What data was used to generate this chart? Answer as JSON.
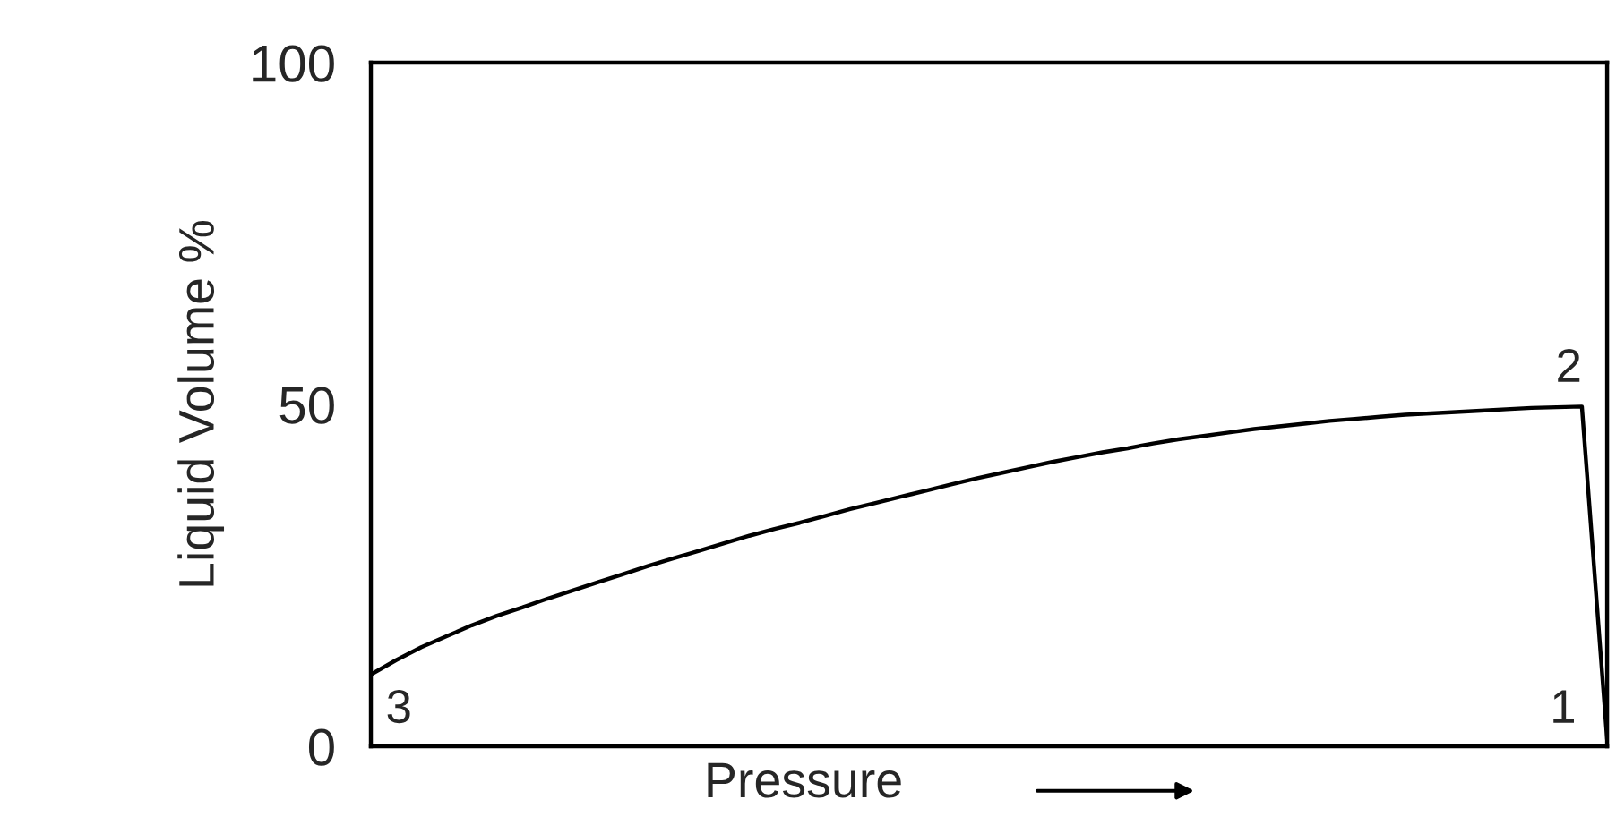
{
  "chart_data": {
    "type": "line",
    "xlabel": "Pressure",
    "ylabel": "Liquid Volume %",
    "categories": [
      null,
      null,
      null,
      null,
      null,
      null,
      null,
      null,
      null,
      null,
      null,
      null,
      null,
      null,
      null,
      null,
      null,
      null,
      null,
      null,
      null,
      null,
      null,
      null,
      null,
      null,
      null,
      null,
      null,
      null,
      null,
      null,
      null,
      null,
      null,
      null,
      null,
      null,
      null,
      null,
      null,
      null,
      null,
      null,
      null,
      null,
      null,
      null,
      null,
      null
    ],
    "series": [
      {
        "color": "#000000",
        "values": [
          10.5,
          12.6,
          14.5,
          16.1,
          17.7,
          19.1,
          20.3,
          21.6,
          22.8,
          24,
          25.2,
          26.4,
          27.5,
          28.6,
          29.7,
          30.8,
          31.8,
          32.7,
          33.7,
          34.7,
          35.6,
          36.5,
          37.4,
          38.3,
          39.2,
          40,
          40.8,
          41.6,
          42.3,
          43,
          43.6,
          44.3,
          44.9,
          45.4,
          45.9,
          46.4,
          46.8,
          47.2,
          47.6,
          47.9,
          48.2,
          48.5,
          48.7,
          48.9,
          49.1,
          49.3,
          49.5,
          49.6,
          49.7,
          1
        ]
      }
    ],
    "ylim": [
      0,
      100
    ],
    "yticks": [
      0,
      50,
      100
    ],
    "tick_labels": "y",
    "grid": false,
    "marker": "none",
    "line_style": "solid",
    "annotations": [
      "3",
      {
        "text": "2",
        "y": 49.7
      },
      "1"
    ]
  }
}
